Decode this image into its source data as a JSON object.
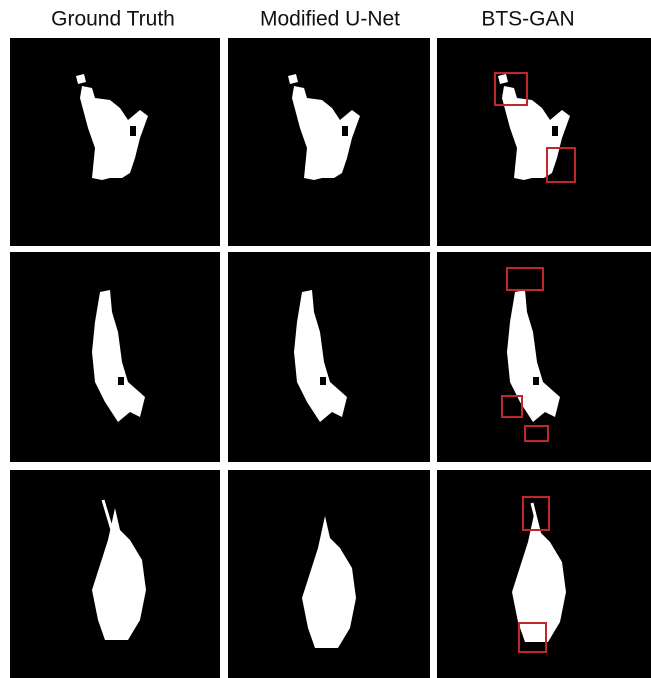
{
  "headers": [
    "Ground Truth",
    "Modified U-Net",
    "BTS-GAN"
  ]
}
